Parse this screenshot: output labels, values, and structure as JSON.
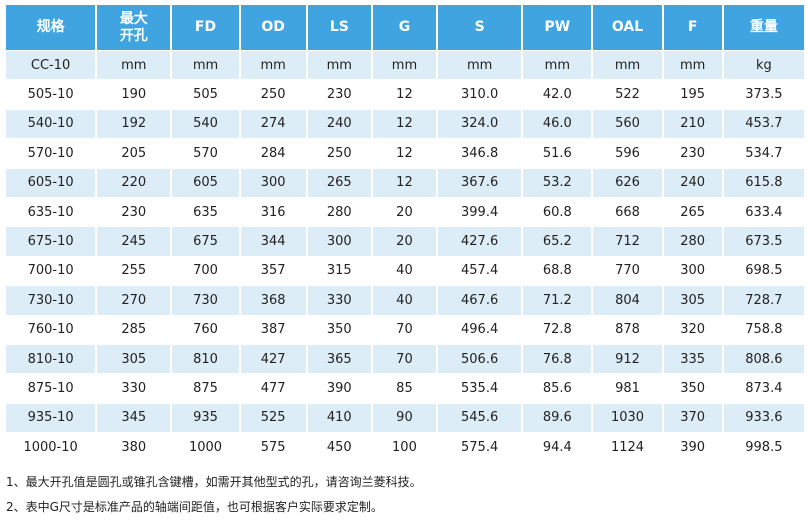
{
  "table": {
    "header": [
      "规格",
      "最大\n开孔",
      "FD",
      "OD",
      "LS",
      "G",
      "S",
      "PW",
      "OAL",
      "F",
      "重量"
    ],
    "units": [
      "CC-10",
      "mm",
      "mm",
      "mm",
      "mm",
      "mm",
      "mm",
      "mm",
      "mm",
      "mm",
      "kg"
    ],
    "rows": [
      [
        "505-10",
        "190",
        "505",
        "250",
        "230",
        "12",
        "310.0",
        "42.0",
        "522",
        "195",
        "373.5"
      ],
      [
        "540-10",
        "192",
        "540",
        "274",
        "240",
        "12",
        "324.0",
        "46.0",
        "560",
        "210",
        "453.7"
      ],
      [
        "570-10",
        "205",
        "570",
        "284",
        "250",
        "12",
        "346.8",
        "51.6",
        "596",
        "230",
        "534.7"
      ],
      [
        "605-10",
        "220",
        "605",
        "300",
        "265",
        "12",
        "367.6",
        "53.2",
        "626",
        "240",
        "615.8"
      ],
      [
        "635-10",
        "230",
        "635",
        "316",
        "280",
        "20",
        "399.4",
        "60.8",
        "668",
        "265",
        "633.4"
      ],
      [
        "675-10",
        "245",
        "675",
        "344",
        "300",
        "20",
        "427.6",
        "65.2",
        "712",
        "280",
        "673.5"
      ],
      [
        "700-10",
        "255",
        "700",
        "357",
        "315",
        "40",
        "457.4",
        "68.8",
        "770",
        "300",
        "698.5"
      ],
      [
        "730-10",
        "270",
        "730",
        "368",
        "330",
        "40",
        "467.6",
        "71.2",
        "804",
        "305",
        "728.7"
      ],
      [
        "760-10",
        "285",
        "760",
        "387",
        "350",
        "70",
        "496.4",
        "72.8",
        "878",
        "320",
        "758.8"
      ],
      [
        "810-10",
        "305",
        "810",
        "427",
        "365",
        "70",
        "506.6",
        "76.8",
        "912",
        "335",
        "808.6"
      ],
      [
        "875-10",
        "330",
        "875",
        "477",
        "390",
        "85",
        "535.4",
        "85.6",
        "981",
        "350",
        "873.4"
      ],
      [
        "935-10",
        "345",
        "935",
        "525",
        "410",
        "90",
        "545.6",
        "89.6",
        "1030",
        "370",
        "933.6"
      ],
      [
        "1000-10",
        "380",
        "1000",
        "575",
        "450",
        "100",
        "575.4",
        "94.4",
        "1124",
        "390",
        "998.5"
      ]
    ]
  },
  "notes": [
    "1、最大开孔值是圆孔或锥孔含键槽，如需开其他型式的孔，请咨询兰菱科技。",
    "2、表中G尺寸是标准产品的轴端间距值，也可根据客户实际要求定制。"
  ]
}
